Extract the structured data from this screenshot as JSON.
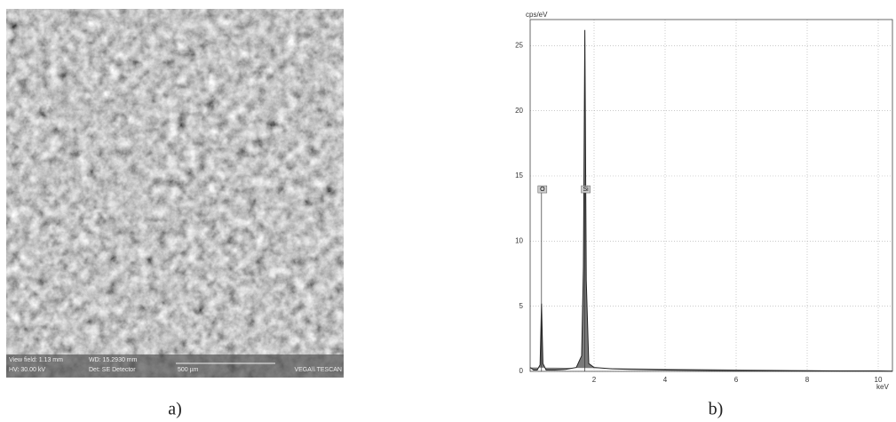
{
  "image_panel": {
    "caption": "a)",
    "info": [
      "View field: 1.13 mm",
      "WD: 15.2930 mm",
      "HV: 30.00 kV",
      "Det: SE Detector",
      "500 µm",
      "VEGA\\\\ TESCAN"
    ]
  },
  "chart_data": {
    "type": "line",
    "caption": "b)",
    "ylabel": "cps/eV",
    "xlabel": "keV",
    "x": [
      0.2,
      0.3,
      0.4,
      0.48,
      0.52,
      0.56,
      0.65,
      0.9,
      1.2,
      1.5,
      1.65,
      1.7,
      1.74,
      1.78,
      1.85,
      2.0,
      2.5,
      3,
      4,
      5,
      6,
      7,
      8,
      9,
      10,
      10.4
    ],
    "series": [
      {
        "color": "#222222",
        "values": [
          0.3,
          0.1,
          0.1,
          0.5,
          5.2,
          0.6,
          0.1,
          0.1,
          0.15,
          0.3,
          1.2,
          8,
          26.2,
          7,
          0.6,
          0.3,
          0.2,
          0.15,
          0.1,
          0.08,
          0.05,
          0.05,
          0.04,
          0.03,
          0.03,
          0.02
        ]
      }
    ],
    "annotations": [
      {
        "label": "O",
        "x": 0.52,
        "y": 13.7
      },
      {
        "label": "Si",
        "x": 1.74,
        "y": 13.7
      }
    ],
    "xlim": [
      0.2,
      10.4
    ],
    "ylim": [
      0,
      27
    ],
    "xticks": [
      2,
      4,
      6,
      8,
      10
    ],
    "yticks": [
      0,
      5,
      10,
      15,
      20,
      25
    ],
    "grid": true
  }
}
